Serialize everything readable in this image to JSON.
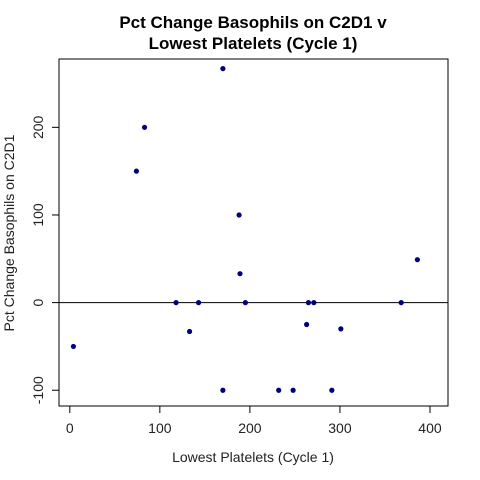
{
  "chart_data": {
    "type": "scatter",
    "title": [
      "Pct Change Basophils on C2D1 v",
      "Lowest Platelets (Cycle 1)"
    ],
    "xlabel": "Lowest Platelets (Cycle 1)",
    "ylabel": "Pct Change Basophils on C2D1",
    "xlim": [
      -12,
      420
    ],
    "ylim": [
      -118,
      278
    ],
    "xticks": [
      0,
      100,
      200,
      300,
      400
    ],
    "xtick_labels": [
      "0",
      "100",
      "200",
      "300",
      "400"
    ],
    "yticks": [
      -100,
      0,
      100,
      200
    ],
    "ytick_labels": [
      "-100",
      "0",
      "100",
      "200"
    ],
    "hline": 0,
    "point_color": "#00007f",
    "grid": false,
    "legend": "none",
    "points": [
      {
        "x": 4,
        "y": -50
      },
      {
        "x": 74,
        "y": 150
      },
      {
        "x": 83,
        "y": 200
      },
      {
        "x": 118,
        "y": 0
      },
      {
        "x": 133,
        "y": -33
      },
      {
        "x": 143,
        "y": 0
      },
      {
        "x": 170,
        "y": 267
      },
      {
        "x": 170,
        "y": -100
      },
      {
        "x": 188,
        "y": 100
      },
      {
        "x": 189,
        "y": 33
      },
      {
        "x": 195,
        "y": 0
      },
      {
        "x": 232,
        "y": -100
      },
      {
        "x": 248,
        "y": -100
      },
      {
        "x": 263,
        "y": -25
      },
      {
        "x": 265,
        "y": 0
      },
      {
        "x": 271,
        "y": 0
      },
      {
        "x": 291,
        "y": -100
      },
      {
        "x": 301,
        "y": -30
      },
      {
        "x": 368,
        "y": 0
      },
      {
        "x": 386,
        "y": 49
      }
    ]
  }
}
